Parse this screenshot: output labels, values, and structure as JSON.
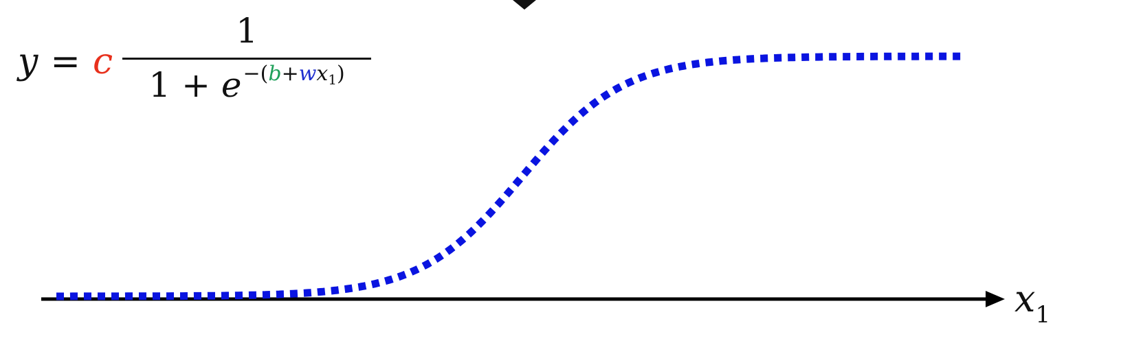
{
  "formula": {
    "lhs": "y",
    "equals": "=",
    "coefficient": "c",
    "numerator": "1",
    "denominator_prefix": "1 + ",
    "base": "e",
    "exp_open": "−(",
    "bias": "b",
    "plus": "+",
    "weight": "w",
    "input": "x",
    "input_sub": "1",
    "exp_close": ")"
  },
  "axis": {
    "label": "x",
    "label_sub": "1"
  },
  "curve": {
    "type": "sigmoid",
    "style": "dotted"
  },
  "colors": {
    "coefficient": "#e8301c",
    "bias": "#1fa05a",
    "weight": "#1f2fcf",
    "curve": "#0a14e0",
    "axis": "#000000"
  }
}
